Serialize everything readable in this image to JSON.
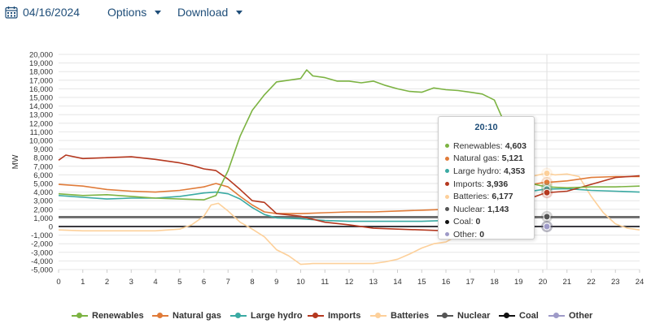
{
  "toolbar": {
    "date": "04/16/2024",
    "options_label": "Options",
    "download_label": "Download"
  },
  "tooltip": {
    "time": "20:10",
    "rows": [
      {
        "label": "Renewables:",
        "value": "4,603",
        "color": "#7cb342"
      },
      {
        "label": "Natural gas:",
        "value": "5,121",
        "color": "#e07b39"
      },
      {
        "label": "Large hydro:",
        "value": "4,353",
        "color": "#3aaaa3"
      },
      {
        "label": "Imports:",
        "value": "3,936",
        "color": "#b5381f"
      },
      {
        "label": "Batteries:",
        "value": "6,177",
        "color": "#fdd09a"
      },
      {
        "label": "Nuclear:",
        "value": "1,143",
        "color": "#555555"
      },
      {
        "label": "Coal:",
        "value": "0",
        "color": "#111111"
      },
      {
        "label": "Other:",
        "value": "0",
        "color": "#9e9ac8"
      }
    ]
  },
  "chart_data": {
    "type": "line",
    "xlabel": "",
    "ylabel": "MW",
    "xlim": [
      0,
      24
    ],
    "ylim": [
      -5000,
      20000
    ],
    "x_ticks": [
      "0",
      "1",
      "2",
      "3",
      "4",
      "5",
      "6",
      "7",
      "8",
      "9",
      "10",
      "11",
      "12",
      "13",
      "14",
      "15",
      "16",
      "17",
      "18",
      "19",
      "20",
      "21",
      "22",
      "23",
      "24"
    ],
    "y_ticks": [
      "20,000",
      "19,000",
      "18,000",
      "17,000",
      "16,000",
      "15,000",
      "14,000",
      "13,000",
      "12,000",
      "11,000",
      "10,000",
      "9,000",
      "8,000",
      "7,000",
      "6,000",
      "5,000",
      "4,000",
      "3,000",
      "2,000",
      "1,000",
      "0",
      "-1,000",
      "-2,000",
      "-3,000",
      "-4,000",
      "-5,000"
    ],
    "grid": true,
    "legend_position": "bottom",
    "highlight_x": 20.17,
    "series": [
      {
        "name": "Renewables",
        "color": "#7cb342",
        "x": [
          0,
          1,
          2,
          3,
          4,
          5,
          6,
          6.5,
          7,
          7.5,
          8,
          8.5,
          9,
          9.5,
          10,
          10.25,
          10.5,
          11,
          11.5,
          12,
          12.5,
          13,
          13.5,
          14,
          14.5,
          15,
          15.5,
          16,
          16.5,
          17,
          17.5,
          18,
          18.5,
          19,
          19.5,
          20,
          20.17,
          21,
          22,
          23,
          24
        ],
        "y": [
          3800,
          3600,
          3700,
          3500,
          3300,
          3200,
          3100,
          3600,
          6500,
          10500,
          13500,
          15300,
          16800,
          17000,
          17200,
          18200,
          17500,
          17300,
          16900,
          16900,
          16700,
          16900,
          16400,
          16000,
          15700,
          15600,
          16100,
          15900,
          15800,
          15600,
          15400,
          14700,
          11500,
          7000,
          5000,
          4700,
          4603,
          4500,
          4600,
          4600,
          4700
        ]
      },
      {
        "name": "Natural gas",
        "color": "#e07b39",
        "x": [
          0,
          1,
          2,
          3,
          4,
          5,
          6,
          6.5,
          7,
          7.5,
          8,
          8.5,
          9,
          10,
          11,
          12,
          13,
          14,
          15,
          16,
          17,
          18,
          19,
          20,
          20.17,
          21,
          22,
          23,
          24
        ],
        "y": [
          4900,
          4700,
          4300,
          4100,
          4000,
          4200,
          4600,
          5000,
          4600,
          3500,
          2500,
          1700,
          1500,
          1500,
          1600,
          1700,
          1700,
          1800,
          1900,
          2000,
          2300,
          3200,
          4600,
          5100,
          5121,
          5300,
          5700,
          5800,
          5800
        ]
      },
      {
        "name": "Large hydro",
        "color": "#3aaaa3",
        "x": [
          0,
          1,
          2,
          3,
          4,
          5,
          6,
          6.5,
          7,
          7.5,
          8,
          8.5,
          9,
          10,
          11,
          12,
          13,
          14,
          15,
          16,
          17,
          18,
          19,
          20,
          20.17,
          21,
          22,
          23,
          24
        ],
        "y": [
          3600,
          3400,
          3200,
          3300,
          3300,
          3500,
          3900,
          4000,
          3800,
          3200,
          2200,
          1400,
          1000,
          900,
          700,
          600,
          600,
          600,
          600,
          700,
          1200,
          2600,
          3900,
          4300,
          4353,
          4400,
          4200,
          4100,
          4000
        ]
      },
      {
        "name": "Imports",
        "color": "#b5381f",
        "x": [
          0,
          0.3,
          1,
          2,
          3,
          4,
          5,
          5.5,
          6,
          6.5,
          7,
          7.5,
          8,
          8.5,
          9,
          10,
          11,
          12,
          13,
          14,
          15,
          16,
          17,
          18,
          19,
          20,
          20.17,
          21,
          22,
          23,
          24
        ],
        "y": [
          7700,
          8300,
          7900,
          8000,
          8100,
          7800,
          7400,
          7100,
          6700,
          6500,
          5500,
          4300,
          3000,
          2800,
          1500,
          1200,
          500,
          200,
          -200,
          -300,
          -400,
          -500,
          -300,
          300,
          2800,
          3800,
          3936,
          4100,
          4900,
          5700,
          5900
        ]
      },
      {
        "name": "Batteries",
        "color": "#fdd09a",
        "x": [
          0,
          1,
          2,
          3,
          4,
          5,
          5.5,
          6,
          6.3,
          6.6,
          7,
          7.5,
          8,
          8.5,
          9,
          9.5,
          10,
          10.5,
          11,
          12,
          13,
          13.5,
          14,
          14.5,
          15,
          15.5,
          16,
          16.5,
          17,
          17.5,
          18,
          18.5,
          19,
          19.5,
          20,
          20.17,
          20.5,
          21,
          21.5,
          22,
          22.5,
          23,
          23.5,
          24
        ],
        "y": [
          -400,
          -500,
          -500,
          -500,
          -500,
          -300,
          200,
          1200,
          2500,
          2700,
          1800,
          500,
          -300,
          -1200,
          -2700,
          -3400,
          -4400,
          -4300,
          -4300,
          -4300,
          -4300,
          -4100,
          -3800,
          -3200,
          -2500,
          -2000,
          -1800,
          -1000,
          -500,
          300,
          1800,
          3500,
          5000,
          5800,
          6100,
          6177,
          6000,
          6100,
          5800,
          3500,
          1600,
          300,
          -200,
          -400
        ]
      },
      {
        "name": "Nuclear",
        "color": "#555555",
        "x": [
          0,
          24
        ],
        "y": [
          1143,
          1143
        ]
      },
      {
        "name": "Coal",
        "color": "#111111",
        "x": [
          0,
          24
        ],
        "y": [
          0,
          0
        ]
      },
      {
        "name": "Other",
        "color": "#9e9ac8",
        "x": [
          0,
          24
        ],
        "y": [
          0,
          0
        ]
      }
    ]
  }
}
